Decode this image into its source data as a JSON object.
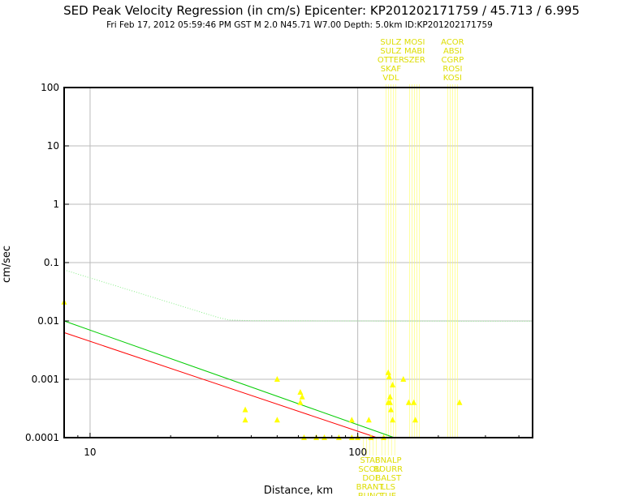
{
  "chart_data": {
    "type": "scatter",
    "title": "SED Peak Velocity Regression (in cm/s) Epicenter: KP201202171759 / 45.713 / 6.995",
    "subtitle": "Fri Feb 17, 2012 05:59:46 PM GST   M 2.0   N45.71 W7.00   Depth: 5.0km   ID:KP201202171759",
    "xlabel": "Distance, km",
    "ylabel": "cm/sec",
    "x_scale": "log",
    "y_scale": "log",
    "xlim": [
      8,
      450
    ],
    "ylim": [
      0.0001,
      100
    ],
    "x_ticks": [
      {
        "value": 10,
        "label": "10"
      },
      {
        "value": 100,
        "label": "100"
      }
    ],
    "y_ticks": [
      {
        "value": 100,
        "label": "100"
      },
      {
        "value": 10,
        "label": "10"
      },
      {
        "value": 1,
        "label": "1"
      },
      {
        "value": 0.1,
        "label": "0.1"
      },
      {
        "value": 0.01,
        "label": "0.01"
      },
      {
        "value": 0.001,
        "label": "0.001"
      },
      {
        "value": 0.0001,
        "label": "0.0001"
      }
    ],
    "grid": true,
    "colors": {
      "points": "#ffff00",
      "upper": "#00cc00",
      "lower": "#ff0000",
      "upper_dotted": "#88ee88",
      "leader": "#ffff66",
      "station_text": "#dddd00"
    },
    "series": [
      {
        "style": "dotted",
        "x": [
          8,
          30,
          33,
          40,
          80,
          450
        ],
        "y": [
          0.075,
          0.0115,
          0.0104,
          0.0101,
          0.01,
          0.0099
        ]
      },
      {
        "style": "solid-green",
        "x": [
          8,
          137
        ],
        "y": [
          0.01,
          0.0001
        ]
      },
      {
        "style": "solid-red",
        "x": [
          8,
          118
        ],
        "y": [
          0.0063,
          0.0001
        ]
      }
    ],
    "points": {
      "x": [
        8,
        38,
        38,
        50,
        50,
        61,
        61,
        62,
        95,
        110,
        135,
        130,
        130,
        131,
        132,
        132,
        133,
        135,
        148,
        155,
        162,
        164,
        240,
        63,
        70,
        75,
        85,
        95,
        100,
        112,
        125
      ],
      "y": [
        0.021,
        0.0003,
        0.0002,
        0.001,
        0.0002,
        0.0006,
        0.0004,
        0.0005,
        0.0002,
        0.0002,
        0.0002,
        0.0004,
        0.0013,
        0.0011,
        0.0005,
        0.0004,
        0.0003,
        0.0008,
        0.001,
        0.0004,
        0.0004,
        0.0002,
        0.0004,
        0.0001,
        0.0001,
        0.0001,
        0.0001,
        0.0001,
        0.0001,
        0.0001,
        0.0001
      ]
    },
    "stations_top": [
      {
        "x": 133,
        "labels": [
          "SULZ",
          "SULZ",
          "OTTER",
          "SKAF",
          "VDL"
        ]
      },
      {
        "x": 163,
        "labels": [
          "MOSI",
          "MABI",
          "SZER"
        ]
      },
      {
        "x": 226,
        "labels": [
          "ACOR",
          "ABSI",
          "CGRP",
          "ROSI",
          "KOSI"
        ]
      }
    ],
    "stations_bottom": [
      {
        "x": 111,
        "labels": [
          "STAF",
          "SCOU",
          "DOI",
          "BRANT",
          "BUNO"
        ]
      },
      {
        "x": 130,
        "labels": [
          "BNALP",
          "BOURR",
          "BALST",
          "LLS",
          "TUE"
        ]
      }
    ]
  }
}
